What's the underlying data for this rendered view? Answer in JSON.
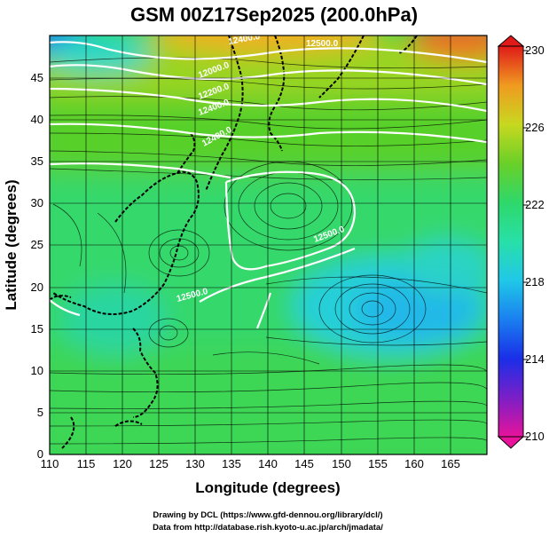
{
  "title": "GSM 00Z17Sep2025 (200.0hPa)",
  "xlabel": "Longitude (degrees)",
  "ylabel": "Latitude (degrees)",
  "credits": [
    "Drawing by DCL (https://www.gfd-dennou.org/library/dcl/)",
    "Data from http://database.rish.kyoto-u.ac.jp/arch/jmadata/"
  ],
  "chart_data": {
    "type": "heatmap",
    "field": "temperature with wind streamlines and height contours",
    "xlim": [
      110,
      170
    ],
    "ylim": [
      0,
      50
    ],
    "x_ticks": [
      "110",
      "115",
      "120",
      "125",
      "130",
      "135",
      "140",
      "145",
      "150",
      "155",
      "160",
      "165"
    ],
    "y_ticks": [
      "0",
      "5",
      "10",
      "15",
      "20",
      "25",
      "30",
      "35",
      "40",
      "45"
    ],
    "colorbar": {
      "min": 210,
      "max": 230,
      "ticks": [
        "210",
        "214",
        "218",
        "222",
        "226",
        "230"
      ],
      "colors": [
        "#e8139a",
        "#6a1fc0",
        "#1a2ee8",
        "#1e8ff0",
        "#22d8e0",
        "#27e0a0",
        "#2ed86a",
        "#49d030",
        "#8ed020",
        "#d8d820",
        "#f0a020",
        "#ee5a20",
        "#e01a1a"
      ]
    },
    "contour_labels": [
      "12400.0",
      "12000.0",
      "12200.0",
      "12400.0",
      "12400.0",
      "12500.0",
      "12500.0",
      "12500.0"
    ],
    "grid": true
  },
  "colors": {
    "land_outline": "#000000",
    "contour": "#ffffff",
    "streamline": "#000000"
  }
}
